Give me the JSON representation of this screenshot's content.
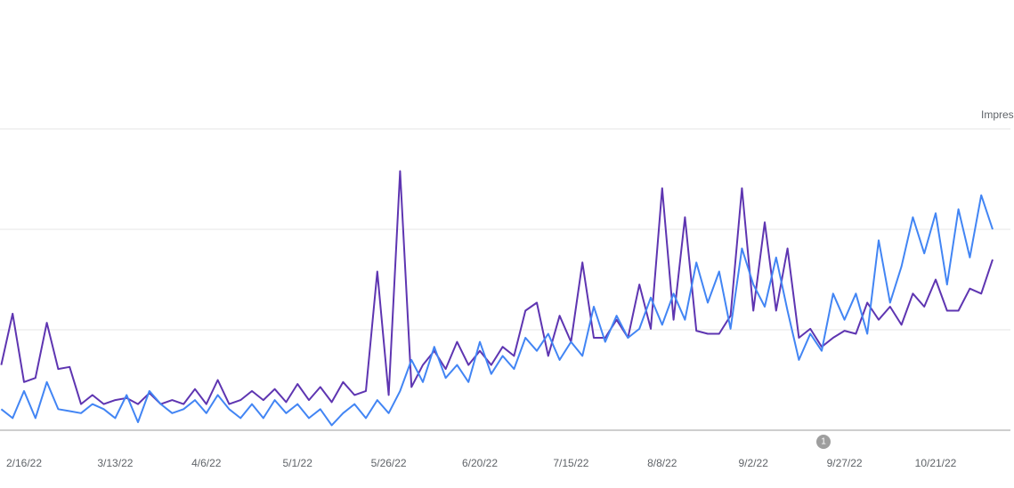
{
  "chart_data": {
    "type": "line",
    "axis_label_right": "Impres",
    "annotations": [
      {
        "text": "1"
      }
    ],
    "categories": [
      null,
      null,
      "2/16/22",
      null,
      null,
      null,
      null,
      null,
      null,
      null,
      "3/13/22",
      null,
      null,
      null,
      null,
      null,
      null,
      null,
      "4/6/22",
      null,
      null,
      null,
      null,
      null,
      null,
      null,
      "5/1/22",
      null,
      null,
      null,
      null,
      null,
      null,
      null,
      "5/26/22",
      null,
      null,
      null,
      null,
      null,
      null,
      null,
      "6/20/22",
      null,
      null,
      null,
      null,
      null,
      null,
      null,
      "7/15/22",
      null,
      null,
      null,
      null,
      null,
      null,
      null,
      "8/8/22",
      null,
      null,
      null,
      null,
      null,
      null,
      null,
      "9/2/22",
      null,
      null,
      null,
      null,
      null,
      null,
      null,
      "9/27/22",
      null,
      null,
      null,
      null,
      null,
      null,
      null,
      "10/21/22",
      null,
      null,
      null,
      null,
      null
    ],
    "series": [
      {
        "color": "#5e35b1",
        "values": [
          0.65,
          1.16,
          0.48,
          0.52,
          1.07,
          0.61,
          0.63,
          0.26,
          0.35,
          0.26,
          0.3,
          0.32,
          0.26,
          0.37,
          0.26,
          0.3,
          0.26,
          0.41,
          0.26,
          0.5,
          0.26,
          0.3,
          0.39,
          0.3,
          0.41,
          0.28,
          0.46,
          0.3,
          0.43,
          0.28,
          0.48,
          0.35,
          0.39,
          1.58,
          0.35,
          2.58,
          0.43,
          0.65,
          0.79,
          0.61,
          0.88,
          0.65,
          0.79,
          0.65,
          0.83,
          0.74,
          1.19,
          1.27,
          0.74,
          1.14,
          0.88,
          1.67,
          0.92,
          0.92,
          1.1,
          0.92,
          1.45,
          1.01,
          2.41,
          1.1,
          2.12,
          0.99,
          0.96,
          0.96,
          1.14,
          2.41,
          1.19,
          2.07,
          1.19,
          1.81,
          0.92,
          1.01,
          0.83,
          0.92,
          0.99,
          0.96,
          1.27,
          1.1,
          1.23,
          1.05,
          1.36,
          1.23,
          1.5,
          1.19,
          1.19,
          1.41,
          1.36,
          1.7
        ]
      },
      {
        "color": "#4285f4",
        "values": [
          0.21,
          0.12,
          0.39,
          0.12,
          0.48,
          0.21,
          0.19,
          0.17,
          0.26,
          0.21,
          0.12,
          0.35,
          0.08,
          0.39,
          0.26,
          0.17,
          0.21,
          0.3,
          0.17,
          0.35,
          0.21,
          0.12,
          0.26,
          0.12,
          0.3,
          0.17,
          0.26,
          0.12,
          0.21,
          0.05,
          0.17,
          0.26,
          0.12,
          0.3,
          0.17,
          0.39,
          0.7,
          0.48,
          0.83,
          0.52,
          0.65,
          0.48,
          0.88,
          0.56,
          0.74,
          0.61,
          0.92,
          0.79,
          0.96,
          0.7,
          0.88,
          0.74,
          1.23,
          0.88,
          1.14,
          0.92,
          1.01,
          1.32,
          1.05,
          1.36,
          1.1,
          1.67,
          1.27,
          1.58,
          1.01,
          1.81,
          1.45,
          1.23,
          1.72,
          1.19,
          0.7,
          0.96,
          0.79,
          1.36,
          1.1,
          1.36,
          0.96,
          1.89,
          1.27,
          1.63,
          2.12,
          1.76,
          2.16,
          1.45,
          2.2,
          1.72,
          2.34,
          2.0
        ]
      }
    ],
    "ylim": [
      0,
      3
    ],
    "gridlines": [
      1,
      2,
      3
    ]
  }
}
